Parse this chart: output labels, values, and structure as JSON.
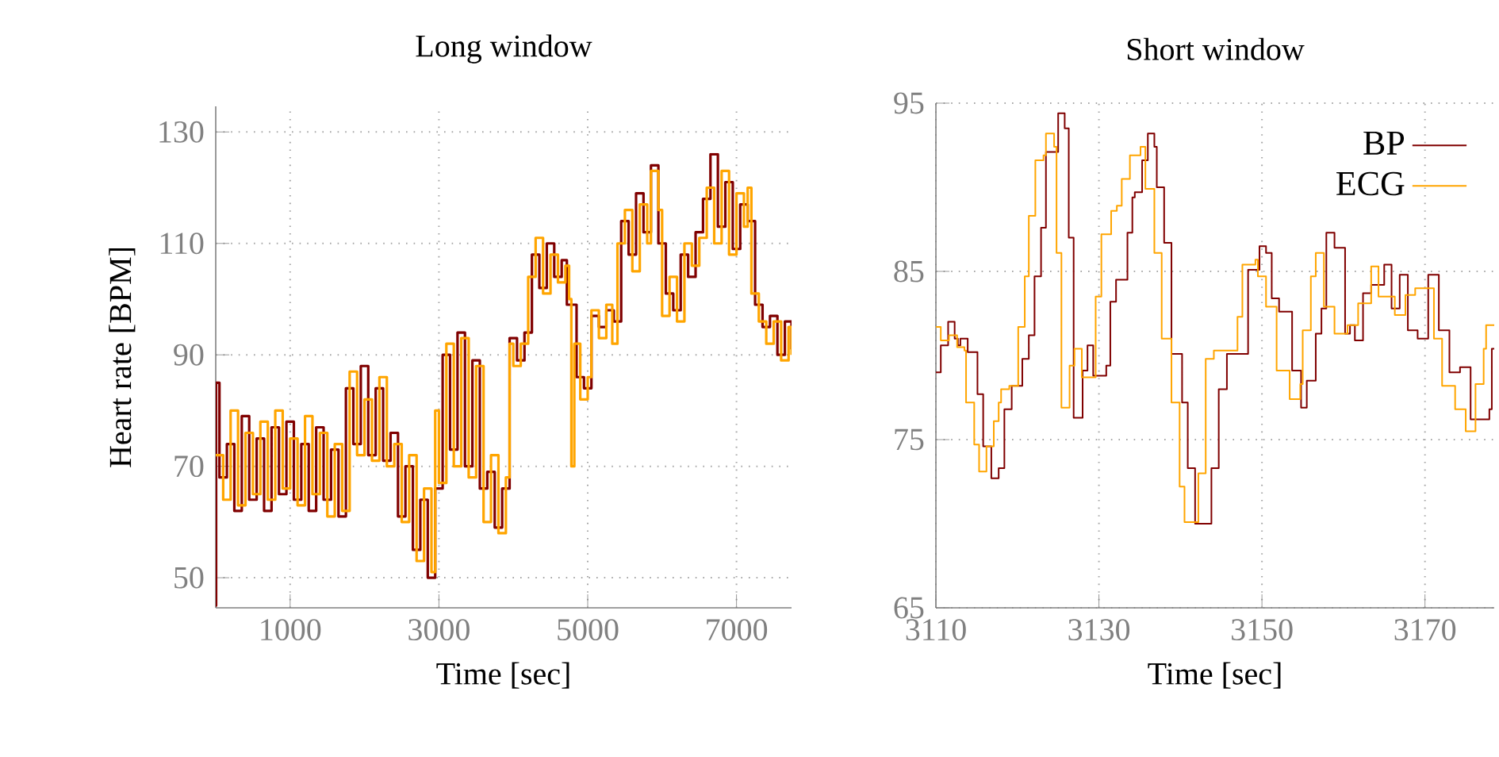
{
  "chart_data": [
    {
      "type": "step",
      "title": "Long window",
      "xlabel": "Time [sec]",
      "ylabel": "Heart rate [BPM]",
      "xlim": [
        0,
        7740
      ],
      "ylim": [
        44.6,
        134.6
      ],
      "xticks": [
        1000,
        3000,
        5000,
        7000
      ],
      "yticks": [
        50,
        70,
        90,
        110,
        130
      ],
      "grid": true,
      "series": [
        {
          "color": "#800000",
          "x": [
            0,
            5,
            50,
            150,
            250,
            350,
            450,
            550,
            650,
            750,
            850,
            950,
            1050,
            1150,
            1250,
            1350,
            1450,
            1550,
            1650,
            1750,
            1850,
            1950,
            2050,
            2150,
            2250,
            2350,
            2450,
            2550,
            2650,
            2750,
            2850,
            2950,
            3050,
            3150,
            3250,
            3350,
            3450,
            3550,
            3650,
            3750,
            3850,
            3950,
            4050,
            4150,
            4250,
            4350,
            4450,
            4550,
            4650,
            4720,
            4850,
            4950,
            5050,
            5150,
            5250,
            5350,
            5450,
            5550,
            5650,
            5750,
            5850,
            5950,
            6050,
            6150,
            6250,
            6350,
            6450,
            6550,
            6650,
            6750,
            6850,
            6950,
            7050,
            7150,
            7250,
            7350,
            7450,
            7550,
            7650,
            7740
          ],
          "values": [
            45,
            85,
            68,
            74,
            62,
            79,
            64,
            75,
            62,
            77,
            65,
            78,
            64,
            74,
            62,
            77,
            64,
            73,
            61,
            84,
            74,
            88,
            72,
            84,
            71,
            76,
            61,
            70,
            55,
            64,
            50,
            66,
            90,
            73,
            94,
            70,
            89,
            66,
            69,
            59,
            66,
            93,
            89,
            94,
            108,
            102,
            110,
            104,
            107,
            99,
            86,
            84,
            97,
            95,
            98,
            96,
            114,
            108,
            119,
            112,
            124,
            110,
            101,
            98,
            108,
            104,
            112,
            118,
            126,
            113,
            121,
            109,
            117,
            114,
            99,
            95,
            97,
            90,
            96,
            91
          ]
        },
        {
          "color": "#ffa500",
          "x": [
            0,
            100,
            200,
            300,
            400,
            500,
            600,
            700,
            800,
            900,
            1000,
            1100,
            1200,
            1300,
            1400,
            1500,
            1600,
            1700,
            1800,
            1900,
            2000,
            2100,
            2200,
            2300,
            2400,
            2500,
            2600,
            2700,
            2800,
            2900,
            2950,
            3000,
            3100,
            3200,
            3300,
            3400,
            3500,
            3600,
            3700,
            3800,
            3900,
            3950,
            4000,
            4100,
            4200,
            4300,
            4400,
            4500,
            4600,
            4700,
            4750,
            4780,
            4820,
            4900,
            5000,
            5050,
            5150,
            5250,
            5330,
            5400,
            5500,
            5600,
            5700,
            5800,
            5850,
            5950,
            6000,
            6100,
            6200,
            6300,
            6400,
            6500,
            6600,
            6700,
            6800,
            6900,
            7000,
            7100,
            7150,
            7200,
            7300,
            7400,
            7500,
            7600,
            7700,
            7740
          ],
          "values": [
            72,
            64,
            80,
            63,
            76,
            65,
            78,
            64,
            80,
            66,
            75,
            63,
            79,
            65,
            76,
            61,
            74,
            62,
            87,
            72,
            82,
            71,
            86,
            70,
            74,
            60,
            72,
            53,
            66,
            51,
            80,
            67,
            92,
            70,
            93,
            68,
            88,
            60,
            72,
            58,
            68,
            92,
            88,
            92,
            104,
            111,
            101,
            108,
            103,
            106,
            100,
            70,
            92,
            82,
            86,
            98,
            93,
            99,
            92,
            110,
            116,
            105,
            117,
            110,
            123,
            116,
            97,
            104,
            96,
            110,
            106,
            111,
            120,
            110,
            123,
            108,
            119,
            113,
            120,
            101,
            96,
            92,
            96,
            89,
            95,
            90
          ]
        }
      ]
    },
    {
      "type": "step",
      "title": "Short window",
      "xlabel": "Time [sec]",
      "xlim": [
        3110,
        3178.5
      ],
      "ylim": [
        65,
        95
      ],
      "xticks": [
        3110,
        3130,
        3150,
        3170
      ],
      "yticks": [
        65,
        75,
        85,
        95
      ],
      "grid": true,
      "legend": "top right",
      "series": [
        {
          "name": "BP",
          "color": "#800000",
          "x": [
            3110.0,
            3110.6,
            3111.5,
            3112.3,
            3112.7,
            3113.0,
            3113.9,
            3115.1,
            3115.8,
            3116.8,
            3117.7,
            3118.4,
            3119.3,
            3120.6,
            3121.4,
            3122.1,
            3122.9,
            3123.5,
            3125.0,
            3125.8,
            3126.3,
            3126.9,
            3128.0,
            3128.6,
            3129.3,
            3130.9,
            3131.4,
            3132.1,
            3133.5,
            3134.1,
            3134.4,
            3135.3,
            3136.0,
            3136.8,
            3137.1,
            3138.0,
            3138.9,
            3140.2,
            3140.9,
            3141.8,
            3143.8,
            3144.7,
            3145.7,
            3148.3,
            3149.7,
            3150.5,
            3151.2,
            3152.1,
            3153.7,
            3154.8,
            3155.5,
            3156.6,
            3157.3,
            3157.9,
            3158.9,
            3160.2,
            3160.8,
            3161.4,
            3162.4,
            3163.4,
            3165.0,
            3165.9,
            3166.9,
            3167.9,
            3169.1,
            3170.4,
            3171.7,
            3173.0,
            3174.3,
            3175.6,
            3177.9,
            3178.2,
            3178.5
          ],
          "values": [
            79.0,
            80.6,
            82.0,
            81.0,
            80.6,
            81.0,
            80.2,
            77.7,
            74.6,
            72.7,
            73.3,
            76.8,
            78.2,
            79.8,
            81.2,
            84.7,
            87.6,
            92.1,
            94.4,
            93.5,
            87.0,
            76.3,
            79.1,
            80.6,
            78.8,
            79.4,
            83.2,
            84.5,
            87.3,
            89.4,
            89.7,
            91.6,
            93.2,
            92.4,
            90.0,
            86.7,
            80.1,
            77.2,
            73.3,
            70.0,
            73.3,
            78.0,
            80.1,
            85.1,
            86.5,
            86.1,
            83.4,
            82.6,
            79.1,
            76.9,
            78.5,
            81.3,
            82.8,
            87.3,
            86.4,
            81.3,
            81.8,
            80.9,
            83.7,
            84.2,
            85.4,
            82.8,
            84.8,
            81.5,
            81.0,
            84.8,
            81.5,
            79.0,
            79.3,
            76.2,
            76.8,
            80.4,
            80.4
          ]
        },
        {
          "name": "ECG",
          "color": "#ffa500",
          "x": [
            3110.0,
            3110.6,
            3111.6,
            3112.6,
            3113.5,
            3113.7,
            3114.7,
            3115.3,
            3116.2,
            3117.1,
            3117.7,
            3118.0,
            3119.0,
            3120.1,
            3120.9,
            3121.4,
            3122.2,
            3123.2,
            3123.5,
            3124.5,
            3124.8,
            3125.4,
            3126.4,
            3127.0,
            3127.9,
            3129.6,
            3130.3,
            3131.5,
            3132.2,
            3132.8,
            3133.8,
            3135.1,
            3135.7,
            3136.8,
            3137.7,
            3138.9,
            3139.9,
            3140.5,
            3142.2,
            3143.1,
            3144.1,
            3147.0,
            3147.6,
            3149.2,
            3149.5,
            3150.5,
            3151.8,
            3153.4,
            3154.7,
            3155.0,
            3156.0,
            3156.6,
            3157.6,
            3158.9,
            3160.5,
            3161.8,
            3163.4,
            3164.3,
            3166.3,
            3167.6,
            3168.8,
            3171.1,
            3172.1,
            3173.7,
            3175.0,
            3176.2,
            3177.2,
            3177.5,
            3178.5
          ],
          "values": [
            81.7,
            80.9,
            81.2,
            80.5,
            80.3,
            77.2,
            74.7,
            73.1,
            74.6,
            76.1,
            77.2,
            78.0,
            78.2,
            81.7,
            84.7,
            88.3,
            91.6,
            91.9,
            93.2,
            92.4,
            86.1,
            76.9,
            79.4,
            80.4,
            78.7,
            83.5,
            87.2,
            88.6,
            88.9,
            90.5,
            91.9,
            92.4,
            89.9,
            86.1,
            81.0,
            77.2,
            72.2,
            70.1,
            73.0,
            79.8,
            80.3,
            82.3,
            85.4,
            85.7,
            84.7,
            82.9,
            79.1,
            77.4,
            78.3,
            81.5,
            84.7,
            86.1,
            82.9,
            81.3,
            81.8,
            83.1,
            85.3,
            83.5,
            82.4,
            83.6,
            84.0,
            81.0,
            78.2,
            76.8,
            75.5,
            78.3,
            80.4,
            81.8,
            81.8
          ]
        }
      ]
    }
  ]
}
